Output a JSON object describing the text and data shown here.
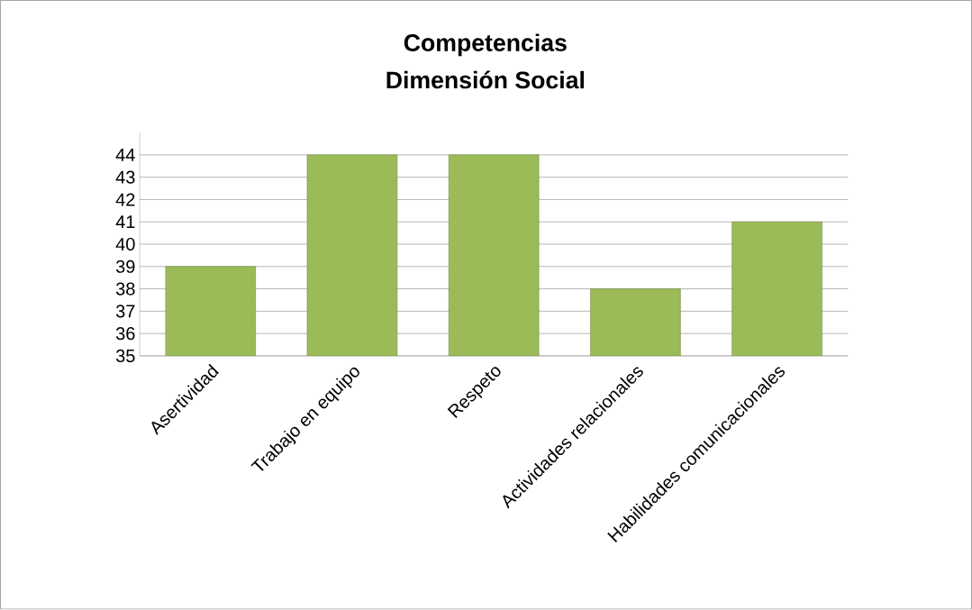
{
  "chart_data": {
    "type": "bar",
    "title": "Competencias",
    "subtitle": "Dimensión Social",
    "categories": [
      "Asertividad",
      "Trabajo en equipo",
      "Respeto",
      "Actividades relacionales",
      "Habilidades comunicacionales"
    ],
    "values": [
      39,
      44,
      44,
      38,
      41
    ],
    "color": "#9bbb59",
    "ylim": [
      35,
      45
    ],
    "yticks": [
      35,
      36,
      37,
      38,
      39,
      40,
      41,
      42,
      43,
      44
    ],
    "grid": "y"
  }
}
